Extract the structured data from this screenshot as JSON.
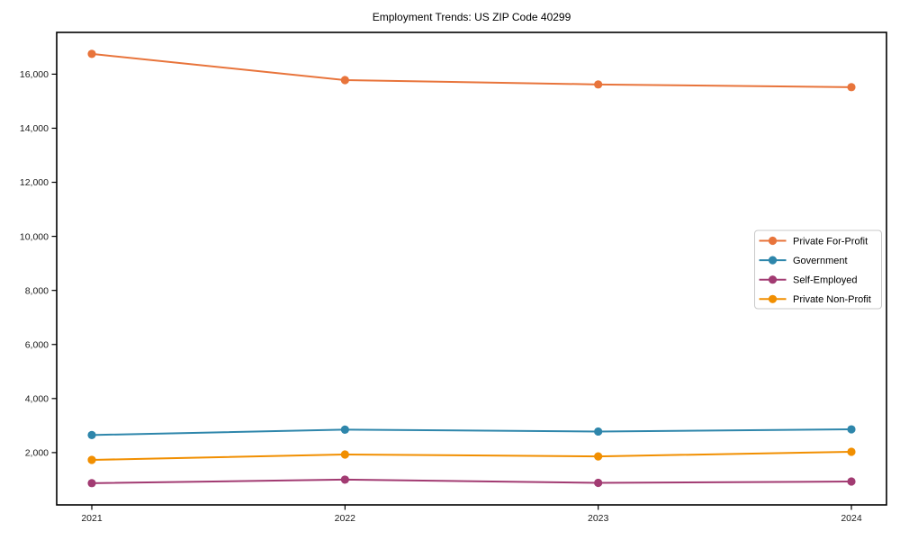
{
  "chart_data": {
    "type": "line",
    "title": "Employment Trends: US ZIP Code 40299",
    "categories": [
      "2021",
      "2022",
      "2023",
      "2024"
    ],
    "series": [
      {
        "name": "Private For-Profit",
        "color": "#E8743B",
        "values": [
          16750,
          15780,
          15620,
          15520
        ]
      },
      {
        "name": "Government",
        "color": "#2E86AB",
        "values": [
          2650,
          2850,
          2780,
          2860
        ]
      },
      {
        "name": "Self-Employed",
        "color": "#A23B72",
        "values": [
          870,
          1000,
          880,
          930
        ]
      },
      {
        "name": "Private Non-Profit",
        "color": "#F18F01",
        "values": [
          1730,
          1930,
          1860,
          2030
        ]
      }
    ],
    "xlabel": "",
    "ylabel": "",
    "ylim": [
      65,
      17545
    ],
    "yticks": [
      2000,
      4000,
      6000,
      8000,
      10000,
      12000,
      14000,
      16000
    ],
    "grid": false,
    "legend_position": "right-middle",
    "colors": {
      "axis": "#000000",
      "tick_label": "#1a1a1a",
      "legend_border": "#c9c9c9",
      "background": "#ffffff"
    }
  }
}
